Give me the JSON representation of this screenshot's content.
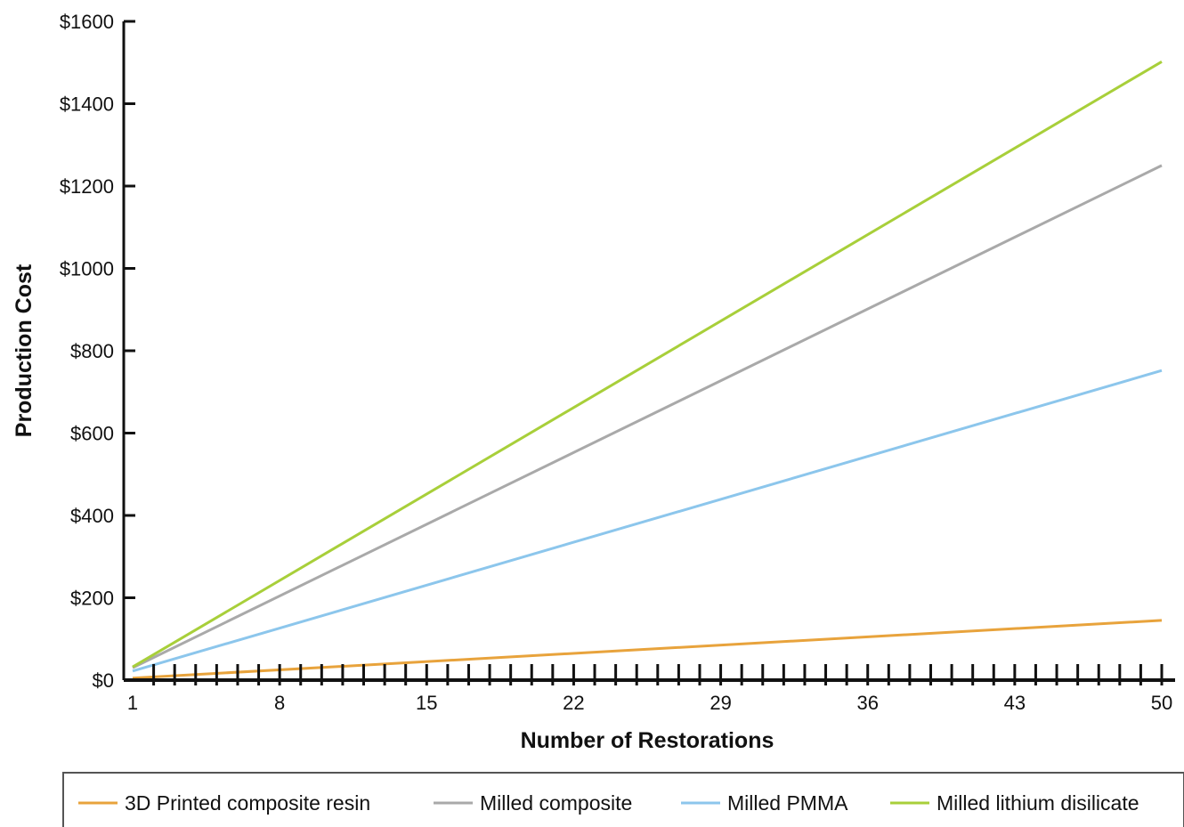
{
  "chart_data": {
    "type": "line",
    "title": "",
    "xlabel": "Number of Restorations",
    "ylabel": "Production Cost",
    "x": [
      1,
      50
    ],
    "xticks": [
      1,
      8,
      15,
      22,
      29,
      36,
      43,
      50
    ],
    "xtick_labels": [
      "1",
      "8",
      "15",
      "22",
      "29",
      "36",
      "43",
      "50"
    ],
    "xlim": [
      1,
      50
    ],
    "yticks": [
      0,
      200,
      400,
      600,
      800,
      1000,
      1200,
      1400,
      1600
    ],
    "ytick_labels": [
      "$0",
      "$200",
      "$400",
      "$600",
      "$800",
      "$1000",
      "$1200",
      "$1400",
      "$1600"
    ],
    "ylim": [
      0,
      1600
    ],
    "grid": false,
    "legend_position": "bottom",
    "series": [
      {
        "name": "3D Printed composite resin",
        "color": "#e8a33c",
        "x": [
          1,
          50
        ],
        "values": [
          5,
          145
        ]
      },
      {
        "name": "Milled composite",
        "color": "#a9a9a9",
        "x": [
          1,
          50
        ],
        "values": [
          30,
          1250
        ]
      },
      {
        "name": "Milled PMMA",
        "color": "#8cc6ec",
        "x": [
          1,
          50
        ],
        "values": [
          22,
          752
        ]
      },
      {
        "name": "Milled lithium disilicate",
        "color": "#a8cf3a",
        "x": [
          1,
          50
        ],
        "values": [
          32,
          1502
        ]
      }
    ]
  }
}
